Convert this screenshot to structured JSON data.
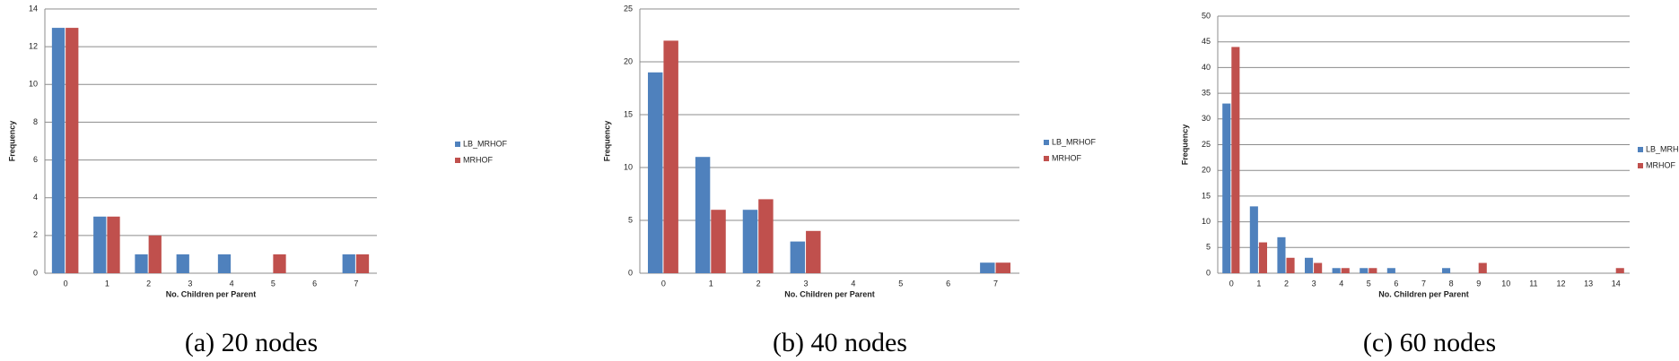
{
  "chart_data": [
    {
      "type": "bar",
      "caption": "(a) 20 nodes",
      "x_label": "No. Children per Parent",
      "y_label": "Frequency",
      "categories": [
        "0",
        "1",
        "2",
        "3",
        "4",
        "5",
        "6",
        "7"
      ],
      "series": [
        {
          "name": "LB_MRHOF",
          "color": "#4f81bd",
          "values": [
            13,
            3,
            1,
            1,
            1,
            0,
            0,
            1
          ]
        },
        {
          "name": "MRHOF",
          "color": "#c0504d",
          "values": [
            13,
            3,
            2,
            0,
            0,
            1,
            0,
            1
          ]
        }
      ],
      "ylim": [
        0,
        14
      ],
      "yticks": [
        0,
        2,
        4,
        6,
        8,
        10,
        12,
        14
      ],
      "grid": true,
      "legend": "right"
    },
    {
      "type": "bar",
      "caption": "(b) 40 nodes",
      "x_label": "No. Children per Parent",
      "y_label": "Frequency",
      "categories": [
        "0",
        "1",
        "2",
        "3",
        "4",
        "5",
        "6",
        "7"
      ],
      "series": [
        {
          "name": "LB_MRHOF",
          "color": "#4f81bd",
          "values": [
            19,
            11,
            6,
            3,
            0,
            0,
            0,
            1
          ]
        },
        {
          "name": "MRHOF",
          "color": "#c0504d",
          "values": [
            22,
            6,
            7,
            4,
            0,
            0,
            0,
            1
          ]
        }
      ],
      "ylim": [
        0,
        25
      ],
      "yticks": [
        0,
        5,
        10,
        15,
        20,
        25
      ],
      "grid": true,
      "legend": "right"
    },
    {
      "type": "bar",
      "caption": "(c) 60 nodes",
      "x_label": "No. Children per Parent",
      "y_label": "Frequency",
      "categories": [
        "0",
        "1",
        "2",
        "3",
        "4",
        "5",
        "6",
        "7",
        "8",
        "9",
        "10",
        "11",
        "12",
        "13",
        "14"
      ],
      "series": [
        {
          "name": "LB_MRHOF",
          "color": "#4f81bd",
          "values": [
            33,
            13,
            7,
            3,
            1,
            1,
            1,
            0,
            1,
            0,
            0,
            0,
            0,
            0,
            0
          ]
        },
        {
          "name": "MRHOF",
          "color": "#c0504d",
          "values": [
            44,
            6,
            3,
            2,
            1,
            1,
            0,
            0,
            0,
            2,
            0,
            0,
            0,
            0,
            1
          ]
        }
      ],
      "ylim": [
        0,
        50
      ],
      "yticks": [
        0,
        5,
        10,
        15,
        20,
        25,
        30,
        35,
        40,
        45,
        50
      ],
      "grid": true,
      "legend": "right"
    }
  ]
}
